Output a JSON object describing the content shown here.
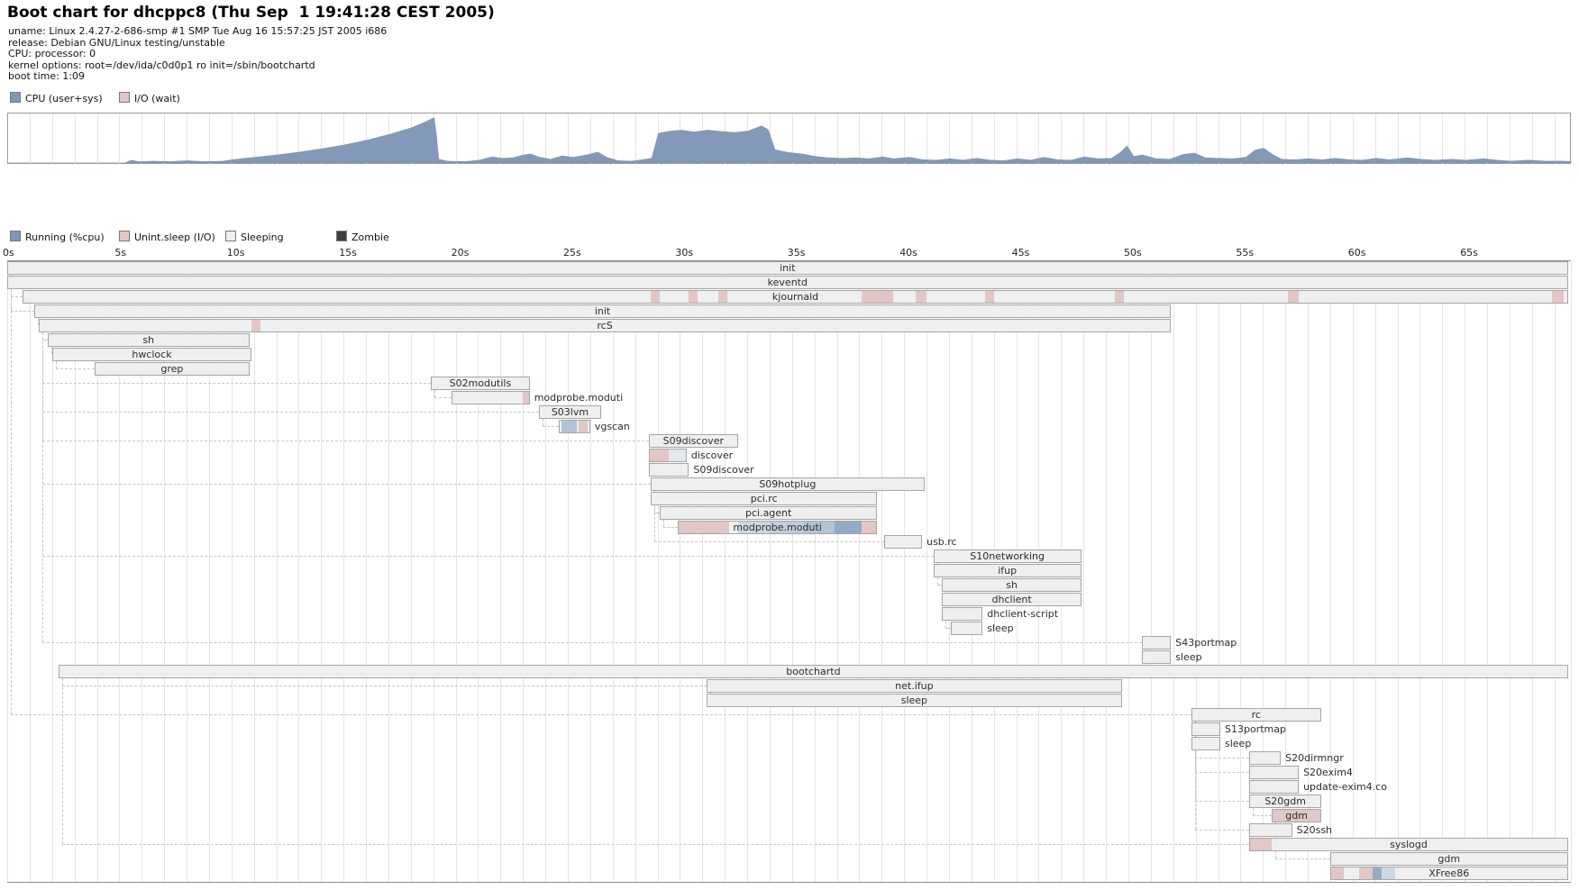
{
  "header": {
    "title": "Boot chart for dhcppc8 (Thu Sep  1 19:41:28 CEST 2005)",
    "info_lines": [
      "uname: Linux 2.4.27-2-686-smp #1 SMP Tue Aug 16 15:57:25 JST 2005 i686",
      "release: Debian GNU/Linux testing/unstable",
      "CPU: processor: 0",
      "kernel options: root=/dev/ida/c0d0p1 ro init=/sbin/bootchartd",
      "boot time: 1:09"
    ]
  },
  "colors": {
    "run": "#7d97b8",
    "run_area": "#8299ba",
    "io": "#e3c6c6",
    "sleep": "#efefef",
    "zombie": "#3f3f3f",
    "blue1": "#ccd7e3",
    "blue2": "#bfcddd",
    "blue3": "#b1c3d6",
    "blue4": "#93abc7",
    "lightblue": "#e3e8ef"
  },
  "chart_data": [
    {
      "type": "area",
      "title": "CPU utilization during boot",
      "legend": [
        {
          "label": "CPU (user+sys)",
          "color": "run",
          "x": 11
        },
        {
          "label": "I/O (wait)",
          "color": "io",
          "x": 132
        }
      ],
      "xlim": [
        0,
        69.7
      ],
      "ylim": [
        0,
        100
      ],
      "grid_interval_s": 1,
      "curve": [
        [
          0,
          0
        ],
        [
          5.2,
          0
        ],
        [
          5.5,
          6
        ],
        [
          5.8,
          3
        ],
        [
          6.5,
          4
        ],
        [
          7.2,
          3
        ],
        [
          8,
          5
        ],
        [
          8.8,
          3
        ],
        [
          9.6,
          4
        ],
        [
          10,
          7
        ],
        [
          11,
          12
        ],
        [
          12,
          17
        ],
        [
          13,
          23
        ],
        [
          14,
          30
        ],
        [
          15,
          38
        ],
        [
          16,
          48
        ],
        [
          17,
          60
        ],
        [
          18,
          74
        ],
        [
          18.6,
          86
        ],
        [
          19,
          95
        ],
        [
          19.1,
          60
        ],
        [
          19.2,
          8
        ],
        [
          19.6,
          4
        ],
        [
          20.4,
          3
        ],
        [
          21,
          6
        ],
        [
          21.6,
          13
        ],
        [
          22,
          10
        ],
        [
          22.5,
          11
        ],
        [
          23,
          17
        ],
        [
          23.3,
          19
        ],
        [
          23.7,
          12
        ],
        [
          24.2,
          8
        ],
        [
          24.7,
          15
        ],
        [
          25.2,
          12
        ],
        [
          25.8,
          17
        ],
        [
          26.3,
          23
        ],
        [
          26.7,
          12
        ],
        [
          27.2,
          5
        ],
        [
          27.8,
          4
        ],
        [
          28.3,
          7
        ],
        [
          28.7,
          10
        ],
        [
          29,
          62
        ],
        [
          29.4,
          66
        ],
        [
          30,
          69
        ],
        [
          30.6,
          65
        ],
        [
          31.2,
          69
        ],
        [
          31.8,
          66
        ],
        [
          32.4,
          64
        ],
        [
          33,
          67
        ],
        [
          33.6,
          78
        ],
        [
          33.9,
          70
        ],
        [
          34.2,
          28
        ],
        [
          34.8,
          22
        ],
        [
          35.4,
          19
        ],
        [
          36,
          14
        ],
        [
          36.6,
          11
        ],
        [
          37.2,
          10
        ],
        [
          37.8,
          11
        ],
        [
          38.4,
          9
        ],
        [
          39,
          13
        ],
        [
          39.5,
          9
        ],
        [
          40.2,
          12
        ],
        [
          40.8,
          7
        ],
        [
          41.4,
          6
        ],
        [
          42,
          9
        ],
        [
          42.6,
          6
        ],
        [
          43.2,
          10
        ],
        [
          43.8,
          6
        ],
        [
          44.4,
          5
        ],
        [
          45,
          9
        ],
        [
          45.6,
          6
        ],
        [
          46.2,
          12
        ],
        [
          46.8,
          7
        ],
        [
          47.4,
          6
        ],
        [
          48,
          13
        ],
        [
          48.6,
          9
        ],
        [
          49.2,
          10
        ],
        [
          49.6,
          22
        ],
        [
          49.9,
          36
        ],
        [
          50.2,
          14
        ],
        [
          50.6,
          17
        ],
        [
          51.2,
          9
        ],
        [
          51.8,
          8
        ],
        [
          52.4,
          18
        ],
        [
          52.9,
          21
        ],
        [
          53.4,
          11
        ],
        [
          54,
          10
        ],
        [
          54.6,
          9
        ],
        [
          55.2,
          12
        ],
        [
          55.6,
          27
        ],
        [
          56,
          31
        ],
        [
          56.4,
          18
        ],
        [
          56.8,
          8
        ],
        [
          57.4,
          7
        ],
        [
          58,
          9
        ],
        [
          58.6,
          7
        ],
        [
          59.2,
          10
        ],
        [
          59.8,
          7
        ],
        [
          60.4,
          6
        ],
        [
          61,
          10
        ],
        [
          61.6,
          7
        ],
        [
          62.4,
          11
        ],
        [
          63,
          8
        ],
        [
          63.6,
          6
        ],
        [
          64.4,
          8
        ],
        [
          65,
          6
        ],
        [
          65.8,
          9
        ],
        [
          66.4,
          6
        ],
        [
          67,
          4
        ],
        [
          67.8,
          6
        ],
        [
          68.6,
          4
        ],
        [
          69.4,
          4
        ],
        [
          69.7,
          3
        ]
      ]
    },
    {
      "type": "gantt",
      "title": "Process tree",
      "legend": [
        {
          "label": "Running (%cpu)",
          "color": "run",
          "x": 11
        },
        {
          "label": "Unint.sleep (I/O)",
          "color": "io",
          "x": 132
        },
        {
          "label": "Sleeping",
          "color": "sleep",
          "x": 250
        },
        {
          "label": "Zombie",
          "color": "zombie",
          "x": 373
        }
      ],
      "axis_ticks_s": [
        0,
        5,
        10,
        15,
        20,
        25,
        30,
        35,
        40,
        45,
        50,
        55,
        60,
        65
      ],
      "xlim": [
        0,
        69.7
      ],
      "grid_interval_s": 1,
      "processes": [
        {
          "name": "init",
          "start": 0,
          "end": 69.6,
          "label_pos": "center",
          "parent": null,
          "segments": []
        },
        {
          "name": "keventd",
          "start": 0,
          "end": 69.6,
          "label_pos": "center",
          "parent": 0,
          "segments": []
        },
        {
          "name": "kjournald",
          "start": 0.7,
          "end": 69.6,
          "label_pos": "center",
          "parent": 0,
          "segments": [
            [
              "io",
              28.7,
              29.1
            ],
            [
              "io",
              30.4,
              30.8
            ],
            [
              "io",
              31.7,
              32.1
            ],
            [
              "io",
              38.1,
              39.5
            ],
            [
              "io",
              40.5,
              41.0
            ],
            [
              "io",
              43.6,
              44.0
            ],
            [
              "io",
              49.4,
              49.8
            ],
            [
              "io",
              57.1,
              57.6
            ],
            [
              "io",
              68.9,
              69.4
            ]
          ]
        },
        {
          "name": "init",
          "start": 1.2,
          "end": 51.9,
          "label_pos": "center",
          "parent": 0,
          "segments": []
        },
        {
          "name": "rcS",
          "start": 1.4,
          "end": 51.9,
          "label_pos": "center",
          "parent": 3,
          "segments": [
            [
              "io",
              10.9,
              11.3
            ]
          ]
        },
        {
          "name": "sh",
          "start": 1.8,
          "end": 10.8,
          "label_pos": "center",
          "parent": 4,
          "segments": []
        },
        {
          "name": "hwclock",
          "start": 2.0,
          "end": 10.9,
          "label_pos": "center",
          "parent": 5,
          "segments": []
        },
        {
          "name": "grep",
          "start": 3.9,
          "end": 10.8,
          "label_pos": "center",
          "parent": 6,
          "segments": []
        },
        {
          "name": "S02modutils",
          "start": 18.9,
          "end": 23.3,
          "label_pos": "center",
          "parent": 4,
          "segments": []
        },
        {
          "name": "modprobe.moduti",
          "start": 19.8,
          "end": 23.3,
          "label_pos": "right",
          "parent": 8,
          "segments": [
            [
              "io",
              23.0,
              23.3
            ]
          ]
        },
        {
          "name": "S03lvm",
          "start": 23.7,
          "end": 26.5,
          "label_pos": "center",
          "parent": 4,
          "segments": []
        },
        {
          "name": "vgscan",
          "start": 24.6,
          "end": 26.0,
          "label_pos": "right",
          "parent": 10,
          "segments": [
            [
              "blue3",
              24.7,
              25.4
            ],
            [
              "io",
              25.5,
              25.9
            ]
          ]
        },
        {
          "name": "S09discover",
          "start": 28.6,
          "end": 32.6,
          "label_pos": "center",
          "parent": 4,
          "segments": []
        },
        {
          "name": "discover",
          "start": 28.6,
          "end": 30.3,
          "label_pos": "right",
          "parent": 12,
          "segments": [
            [
              "io",
              28.6,
              29.5
            ],
            [
              "lightblue",
              29.5,
              30.3
            ]
          ]
        },
        {
          "name": "S09discover",
          "start": 28.6,
          "end": 30.4,
          "label_pos": "right",
          "parent": 12,
          "segments": []
        },
        {
          "name": "S09hotplug",
          "start": 28.7,
          "end": 40.9,
          "label_pos": "center",
          "parent": 4,
          "segments": []
        },
        {
          "name": "pci.rc",
          "start": 28.7,
          "end": 38.8,
          "label_pos": "center",
          "parent": 15,
          "segments": []
        },
        {
          "name": "pci.agent",
          "start": 29.1,
          "end": 38.8,
          "label_pos": "center",
          "parent": 16,
          "segments": []
        },
        {
          "name": "modprobe.moduti",
          "start": 29.9,
          "end": 38.8,
          "label_pos": "center",
          "parent": 17,
          "segments": [
            [
              "io",
              29.9,
              32.2
            ],
            [
              "sleep",
              32.2,
              32.6
            ],
            [
              "blue1",
              32.6,
              34.0
            ],
            [
              "blue2",
              34.0,
              35.5
            ],
            [
              "blue3",
              35.5,
              36.9
            ],
            [
              "blue4",
              36.9,
              38.1
            ],
            [
              "io",
              38.1,
              38.8
            ]
          ]
        },
        {
          "name": "usb.rc",
          "start": 39.1,
          "end": 40.8,
          "label_pos": "right",
          "parent": 15,
          "segments": []
        },
        {
          "name": "S10networking",
          "start": 41.3,
          "end": 47.9,
          "label_pos": "center",
          "parent": 4,
          "segments": []
        },
        {
          "name": "ifup",
          "start": 41.3,
          "end": 47.9,
          "label_pos": "center",
          "parent": 20,
          "segments": []
        },
        {
          "name": "sh",
          "start": 41.7,
          "end": 47.9,
          "label_pos": "center",
          "parent": 21,
          "segments": []
        },
        {
          "name": "dhclient",
          "start": 41.7,
          "end": 47.9,
          "label_pos": "center",
          "parent": 22,
          "segments": []
        },
        {
          "name": "dhclient-script",
          "start": 41.7,
          "end": 43.5,
          "label_pos": "right",
          "parent": 23,
          "segments": []
        },
        {
          "name": "sleep",
          "start": 42.1,
          "end": 43.5,
          "label_pos": "right",
          "parent": 24,
          "segments": []
        },
        {
          "name": "S43portmap",
          "start": 50.6,
          "end": 51.9,
          "label_pos": "right",
          "parent": 4,
          "segments": []
        },
        {
          "name": "sleep",
          "start": 50.6,
          "end": 51.9,
          "label_pos": "right",
          "parent": 26,
          "segments": []
        },
        {
          "name": "bootchartd",
          "start": 2.3,
          "end": 69.6,
          "label_pos": "center",
          "parent": null,
          "segments": []
        },
        {
          "name": "net.ifup",
          "start": 31.2,
          "end": 49.7,
          "label_pos": "center",
          "parent": 28,
          "segments": []
        },
        {
          "name": "sleep",
          "start": 31.2,
          "end": 49.7,
          "label_pos": "center",
          "parent": 29,
          "segments": []
        },
        {
          "name": "rc",
          "start": 52.8,
          "end": 58.6,
          "label_pos": "center",
          "parent": 0,
          "segments": []
        },
        {
          "name": "S13portmap",
          "start": 52.8,
          "end": 54.1,
          "label_pos": "right",
          "parent": 31,
          "segments": []
        },
        {
          "name": "sleep",
          "start": 52.8,
          "end": 54.1,
          "label_pos": "right",
          "parent": 32,
          "segments": []
        },
        {
          "name": "S20dirmngr",
          "start": 55.4,
          "end": 56.8,
          "label_pos": "right",
          "parent": 31,
          "segments": []
        },
        {
          "name": "S20exim4",
          "start": 55.4,
          "end": 57.6,
          "label_pos": "right",
          "parent": 31,
          "segments": []
        },
        {
          "name": "update-exim4.co",
          "start": 55.4,
          "end": 57.6,
          "label_pos": "right",
          "parent": 35,
          "segments": []
        },
        {
          "name": "S20gdm",
          "start": 55.4,
          "end": 58.6,
          "label_pos": "center",
          "parent": 31,
          "segments": []
        },
        {
          "name": "gdm",
          "start": 56.4,
          "end": 58.6,
          "label_pos": "center",
          "parent": 37,
          "segments": [
            [
              "io",
              56.4,
              58.6
            ]
          ]
        },
        {
          "name": "S20ssh",
          "start": 55.4,
          "end": 57.3,
          "label_pos": "right",
          "parent": 31,
          "segments": []
        },
        {
          "name": "syslogd",
          "start": 55.4,
          "end": 69.6,
          "label_pos": "center",
          "parent": 28,
          "segments": [
            [
              "io",
              55.4,
              56.4
            ]
          ]
        },
        {
          "name": "gdm",
          "start": 59.0,
          "end": 69.6,
          "label_pos": "center",
          "parent": 38,
          "segments": []
        },
        {
          "name": "XFree86",
          "start": 59.0,
          "end": 69.6,
          "label_pos": "center",
          "parent": 41,
          "segments": [
            [
              "io",
              59.0,
              59.6
            ],
            [
              "sleep",
              59.6,
              60.3
            ],
            [
              "io",
              60.3,
              60.9
            ],
            [
              "blue4",
              60.9,
              61.3
            ],
            [
              "blue1",
              61.3,
              61.9
            ]
          ]
        }
      ]
    }
  ]
}
